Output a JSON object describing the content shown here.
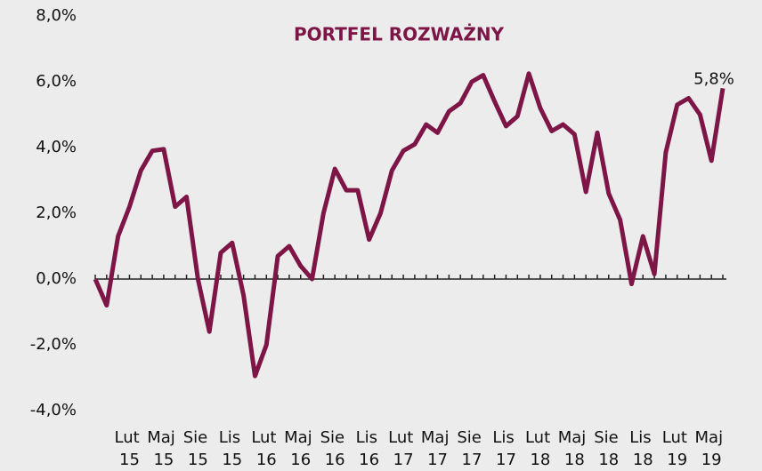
{
  "chart_data": {
    "type": "line",
    "title": "PORTFEL ROZWAŻNY",
    "categories": [
      null,
      null,
      null,
      "Lut 15",
      null,
      null,
      "Maj 15",
      null,
      null,
      "Sie 15",
      null,
      null,
      "Lis 15",
      null,
      null,
      "Lut 16",
      null,
      null,
      "Maj 16",
      null,
      null,
      "Sie 16",
      null,
      null,
      "Lis 16",
      null,
      null,
      "Lut 17",
      null,
      null,
      "Maj 17",
      null,
      null,
      "Sie 17",
      null,
      null,
      "Lis 17",
      null,
      null,
      "Lut 18",
      null,
      null,
      "Maj 18",
      null,
      null,
      "Sie 18",
      null,
      null,
      "Lis 18",
      null,
      null,
      "Lut 19",
      null,
      null,
      "Maj 19",
      null
    ],
    "series": [
      {
        "color": "#7d1546",
        "values": [
          0,
          -0.8,
          1.3,
          2.2,
          3.3,
          3.9,
          3.95,
          2.2,
          2.5,
          0,
          -1.6,
          0.8,
          1.1,
          -0.5,
          -2.95,
          -2.0,
          0.7,
          1.0,
          0.4,
          0.0,
          2.0,
          3.35,
          2.7,
          2.7,
          1.2,
          2.0,
          3.3,
          3.9,
          4.1,
          4.7,
          4.45,
          5.1,
          5.35,
          6.0,
          6.2,
          5.4,
          4.65,
          4.95,
          6.25,
          5.2,
          4.5,
          4.7,
          4.4,
          2.65,
          4.45,
          2.6,
          1.8,
          -0.15,
          1.3,
          0.15,
          3.85,
          5.3,
          5.5,
          5.0,
          3.6,
          5.8
        ],
        "value_labels": [
          null,
          null,
          null,
          null,
          null,
          null,
          null,
          null,
          null,
          null,
          null,
          null,
          null,
          null,
          null,
          null,
          null,
          null,
          null,
          null,
          null,
          null,
          null,
          null,
          null,
          null,
          null,
          null,
          null,
          null,
          null,
          null,
          null,
          null,
          null,
          null,
          null,
          null,
          null,
          null,
          null,
          null,
          null,
          null,
          null,
          null,
          null,
          null,
          null,
          null,
          null,
          null,
          null,
          null,
          null,
          "5,8%"
        ]
      }
    ],
    "ylim": [
      -4,
      8
    ],
    "yticks": [
      {
        "value": -4,
        "label": "-4,0%"
      },
      {
        "value": -2,
        "label": "-2,0%"
      },
      {
        "value": 0,
        "label": "0,0%"
      },
      {
        "value": 2,
        "label": "2,0%"
      },
      {
        "value": 4,
        "label": "4,0%"
      },
      {
        "value": 6,
        "label": "6,0%"
      },
      {
        "value": 8,
        "label": "8,0%"
      }
    ],
    "grid": false
  }
}
